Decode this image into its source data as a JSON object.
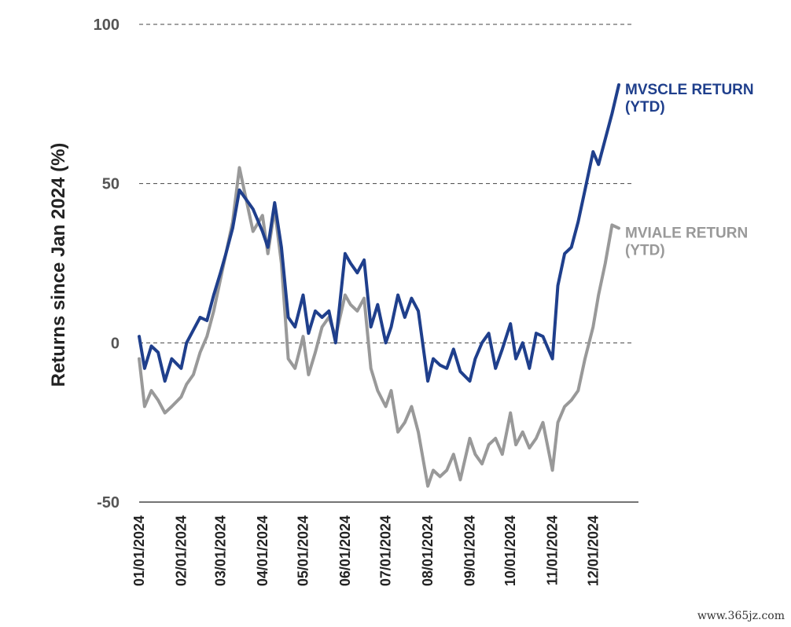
{
  "chart_data": {
    "type": "line",
    "ylabel": "Returns since Jan 2024 (%)",
    "xlabel": "",
    "ylim": [
      -50,
      100
    ],
    "yticks": [
      100,
      50,
      0,
      -50
    ],
    "ytick_labels": [
      "100",
      "50",
      "0",
      "-50"
    ],
    "grid": "dashed horizontal at 100, 50, 0",
    "xlim": [
      "2024-01-01",
      "2024-12-31"
    ],
    "xtick_labels": [
      "01/01/2024",
      "02/01/2024",
      "03/01/2024",
      "04/01/2024",
      "05/01/2024",
      "06/01/2024",
      "07/01/2024",
      "08/01/2024",
      "09/01/2024",
      "10/01/2024",
      "11/01/2024",
      "12/01/2024"
    ],
    "xtick_dates": [
      "2024-01-01",
      "2024-02-01",
      "2024-03-01",
      "2024-04-01",
      "2024-05-01",
      "2024-06-01",
      "2024-07-01",
      "2024-08-01",
      "2024-09-01",
      "2024-10-01",
      "2024-11-01",
      "2024-12-01"
    ],
    "series": [
      {
        "name": "MVSCLE RETURN (YTD)",
        "label_lines": [
          "MVSCLE RETURN",
          "(YTD)"
        ],
        "color": "#1f3f8c",
        "x": [
          "2024-01-01",
          "2024-01-05",
          "2024-01-10",
          "2024-01-15",
          "2024-01-20",
          "2024-01-25",
          "2024-02-01",
          "2024-02-05",
          "2024-02-10",
          "2024-02-15",
          "2024-02-20",
          "2024-02-25",
          "2024-03-01",
          "2024-03-05",
          "2024-03-10",
          "2024-03-15",
          "2024-03-20",
          "2024-03-25",
          "2024-04-01",
          "2024-04-05",
          "2024-04-10",
          "2024-04-15",
          "2024-04-20",
          "2024-04-25",
          "2024-05-01",
          "2024-05-05",
          "2024-05-10",
          "2024-05-15",
          "2024-05-20",
          "2024-05-25",
          "2024-06-01",
          "2024-06-05",
          "2024-06-10",
          "2024-06-15",
          "2024-06-20",
          "2024-06-25",
          "2024-07-01",
          "2024-07-05",
          "2024-07-10",
          "2024-07-15",
          "2024-07-20",
          "2024-07-25",
          "2024-08-01",
          "2024-08-05",
          "2024-08-10",
          "2024-08-15",
          "2024-08-20",
          "2024-08-25",
          "2024-09-01",
          "2024-09-05",
          "2024-09-10",
          "2024-09-15",
          "2024-09-20",
          "2024-09-25",
          "2024-10-01",
          "2024-10-05",
          "2024-10-10",
          "2024-10-15",
          "2024-10-20",
          "2024-10-25",
          "2024-11-01",
          "2024-11-05",
          "2024-11-10",
          "2024-11-15",
          "2024-11-20",
          "2024-11-25",
          "2024-12-01",
          "2024-12-05",
          "2024-12-10",
          "2024-12-15",
          "2024-12-20"
        ],
        "y": [
          2,
          -8,
          -1,
          -3,
          -12,
          -5,
          -8,
          0,
          4,
          8,
          7,
          15,
          22,
          28,
          36,
          48,
          45,
          42,
          35,
          30,
          44,
          30,
          8,
          5,
          15,
          3,
          10,
          8,
          10,
          0,
          28,
          25,
          22,
          26,
          5,
          12,
          0,
          5,
          15,
          8,
          14,
          10,
          -12,
          -5,
          -7,
          -8,
          -2,
          -9,
          -12,
          -5,
          0,
          3,
          -8,
          -2,
          6,
          -5,
          0,
          -8,
          3,
          2,
          -5,
          18,
          28,
          30,
          38,
          48,
          60,
          56,
          64,
          72,
          81
        ]
      },
      {
        "name": "MVIALE RETURN (YTD)",
        "label_lines": [
          "MVIALE RETURN",
          "(YTD)"
        ],
        "color": "#999999",
        "x": [
          "2024-01-01",
          "2024-01-05",
          "2024-01-10",
          "2024-01-15",
          "2024-01-20",
          "2024-01-25",
          "2024-02-01",
          "2024-02-05",
          "2024-02-10",
          "2024-02-15",
          "2024-02-20",
          "2024-02-25",
          "2024-03-01",
          "2024-03-05",
          "2024-03-10",
          "2024-03-15",
          "2024-03-20",
          "2024-03-25",
          "2024-04-01",
          "2024-04-05",
          "2024-04-10",
          "2024-04-15",
          "2024-04-20",
          "2024-04-25",
          "2024-05-01",
          "2024-05-05",
          "2024-05-10",
          "2024-05-15",
          "2024-05-20",
          "2024-05-25",
          "2024-06-01",
          "2024-06-05",
          "2024-06-10",
          "2024-06-15",
          "2024-06-20",
          "2024-06-25",
          "2024-07-01",
          "2024-07-05",
          "2024-07-10",
          "2024-07-15",
          "2024-07-20",
          "2024-07-25",
          "2024-08-01",
          "2024-08-05",
          "2024-08-10",
          "2024-08-15",
          "2024-08-20",
          "2024-08-25",
          "2024-09-01",
          "2024-09-05",
          "2024-09-10",
          "2024-09-15",
          "2024-09-20",
          "2024-09-25",
          "2024-10-01",
          "2024-10-05",
          "2024-10-10",
          "2024-10-15",
          "2024-10-20",
          "2024-10-25",
          "2024-11-01",
          "2024-11-05",
          "2024-11-10",
          "2024-11-15",
          "2024-11-20",
          "2024-11-25",
          "2024-12-01",
          "2024-12-05",
          "2024-12-10",
          "2024-12-15",
          "2024-12-20"
        ],
        "y": [
          -5,
          -20,
          -15,
          -18,
          -22,
          -20,
          -17,
          -13,
          -10,
          -3,
          2,
          10,
          20,
          28,
          38,
          55,
          45,
          35,
          40,
          28,
          42,
          25,
          -5,
          -8,
          2,
          -10,
          -3,
          5,
          8,
          2,
          15,
          12,
          10,
          14,
          -8,
          -15,
          -20,
          -15,
          -28,
          -25,
          -20,
          -28,
          -45,
          -40,
          -42,
          -40,
          -35,
          -43,
          -30,
          -35,
          -38,
          -32,
          -30,
          -35,
          -22,
          -32,
          -28,
          -33,
          -30,
          -25,
          -40,
          -25,
          -20,
          -18,
          -15,
          -5,
          5,
          15,
          25,
          37,
          36
        ]
      }
    ]
  },
  "watermark": "www.365jz.com"
}
